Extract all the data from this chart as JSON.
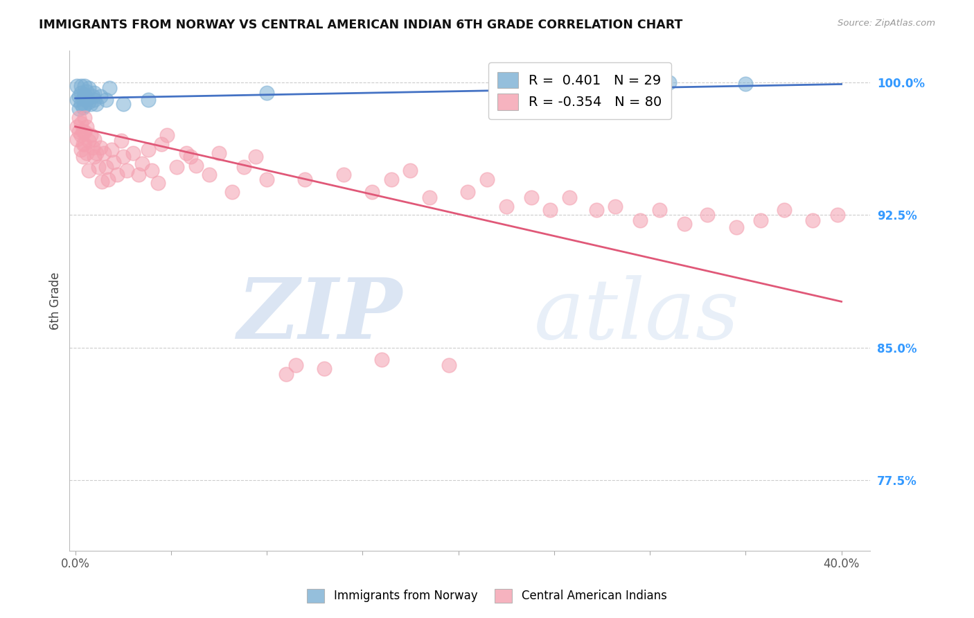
{
  "title": "IMMIGRANTS FROM NORWAY VS CENTRAL AMERICAN INDIAN 6TH GRADE CORRELATION CHART",
  "source": "Source: ZipAtlas.com",
  "ylabel": "6th Grade",
  "ylim": [
    0.735,
    1.018
  ],
  "xlim": [
    -0.003,
    0.415
  ],
  "grid_yticks": [
    0.775,
    0.85,
    0.925,
    1.0
  ],
  "norway_R": 0.401,
  "norway_N": 29,
  "cai_R": -0.354,
  "cai_N": 80,
  "norway_color": "#7bafd4",
  "cai_color": "#f4a0b0",
  "norway_line_color": "#4472c4",
  "cai_line_color": "#e05878",
  "norway_x": [
    0.001,
    0.001,
    0.002,
    0.002,
    0.003,
    0.003,
    0.003,
    0.004,
    0.004,
    0.005,
    0.005,
    0.005,
    0.006,
    0.006,
    0.007,
    0.007,
    0.008,
    0.009,
    0.01,
    0.01,
    0.011,
    0.013,
    0.016,
    0.018,
    0.025,
    0.038,
    0.1,
    0.31,
    0.35
  ],
  "norway_y": [
    0.99,
    0.998,
    0.985,
    0.992,
    0.988,
    0.994,
    0.998,
    0.991,
    0.986,
    0.993,
    0.987,
    0.998,
    0.99,
    0.995,
    0.989,
    0.997,
    0.988,
    0.992,
    0.99,
    0.994,
    0.988,
    0.992,
    0.99,
    0.997,
    0.988,
    0.99,
    0.994,
    1.0,
    0.999
  ],
  "cai_x": [
    0.001,
    0.001,
    0.002,
    0.002,
    0.003,
    0.003,
    0.003,
    0.004,
    0.004,
    0.004,
    0.005,
    0.005,
    0.005,
    0.006,
    0.006,
    0.007,
    0.007,
    0.008,
    0.009,
    0.01,
    0.01,
    0.011,
    0.012,
    0.013,
    0.014,
    0.015,
    0.016,
    0.017,
    0.019,
    0.02,
    0.022,
    0.024,
    0.025,
    0.027,
    0.03,
    0.033,
    0.035,
    0.038,
    0.04,
    0.043,
    0.048,
    0.053,
    0.058,
    0.063,
    0.07,
    0.075,
    0.082,
    0.088,
    0.094,
    0.1,
    0.11,
    0.12,
    0.13,
    0.14,
    0.155,
    0.165,
    0.175,
    0.185,
    0.195,
    0.205,
    0.215,
    0.225,
    0.238,
    0.248,
    0.258,
    0.272,
    0.282,
    0.295,
    0.305,
    0.318,
    0.33,
    0.345,
    0.358,
    0.37,
    0.385,
    0.398,
    0.06,
    0.045,
    0.115,
    0.16
  ],
  "cai_y": [
    0.975,
    0.968,
    0.98,
    0.972,
    0.97,
    0.962,
    0.977,
    0.965,
    0.972,
    0.958,
    0.972,
    0.965,
    0.98,
    0.975,
    0.96,
    0.967,
    0.95,
    0.97,
    0.963,
    0.958,
    0.968,
    0.96,
    0.952,
    0.963,
    0.944,
    0.96,
    0.952,
    0.945,
    0.962,
    0.955,
    0.948,
    0.967,
    0.958,
    0.95,
    0.96,
    0.948,
    0.954,
    0.962,
    0.95,
    0.943,
    0.97,
    0.952,
    0.96,
    0.953,
    0.948,
    0.96,
    0.938,
    0.952,
    0.958,
    0.945,
    0.835,
    0.945,
    0.838,
    0.948,
    0.938,
    0.945,
    0.95,
    0.935,
    0.84,
    0.938,
    0.945,
    0.93,
    0.935,
    0.928,
    0.935,
    0.928,
    0.93,
    0.922,
    0.928,
    0.92,
    0.925,
    0.918,
    0.922,
    0.928,
    0.922,
    0.925,
    0.958,
    0.965,
    0.84,
    0.843
  ],
  "watermark_zip": "ZIP",
  "watermark_atlas": "atlas",
  "right_yticks": [
    1.0,
    0.925,
    0.85,
    0.775
  ],
  "right_yticklabels": [
    "100.0%",
    "92.5%",
    "85.0%",
    "77.5%"
  ],
  "norway_line_y0": 0.991,
  "norway_line_y1": 0.999,
  "cai_line_y0": 0.975,
  "cai_line_y1": 0.876
}
